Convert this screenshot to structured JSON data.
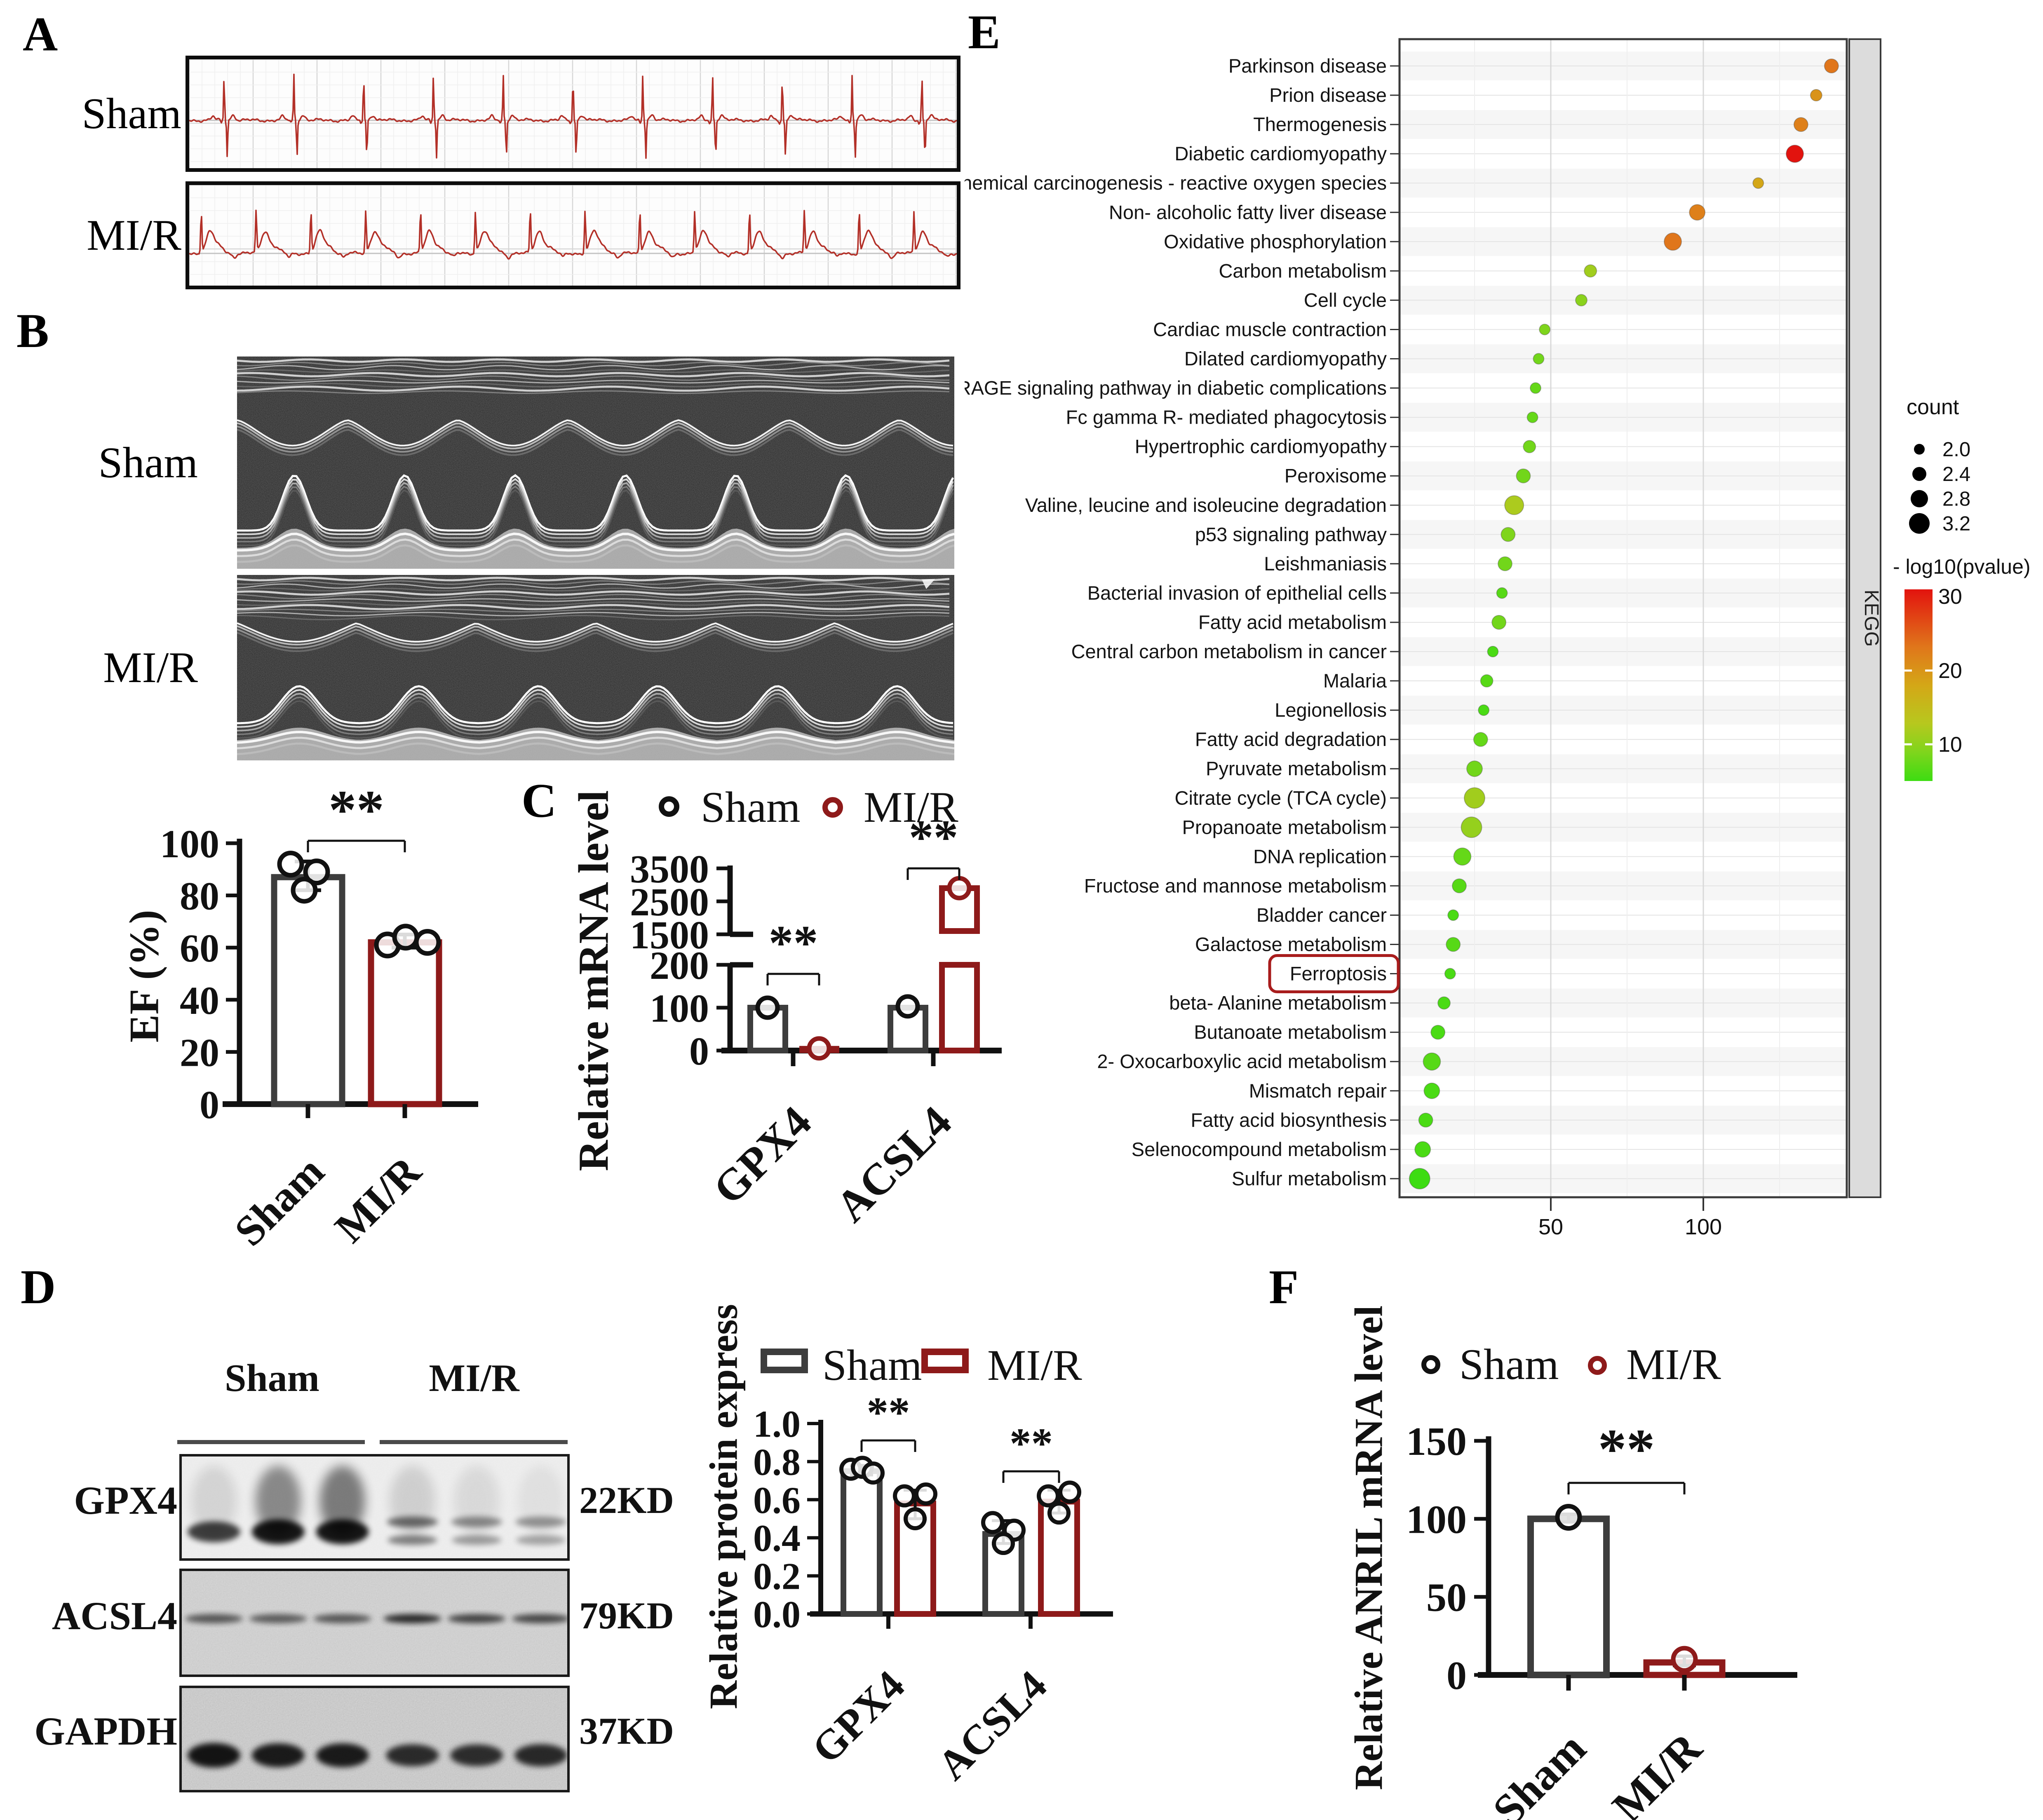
{
  "colors": {
    "mir_red": "#8e1a1a",
    "sham_dark": "#3d3d3d",
    "ecg_red": "#b33028",
    "point_black": "#111111",
    "ferroptosis_box": "#a81c1c",
    "kegg_strip": "#dcdcdc"
  },
  "panels": {
    "a": {
      "letter": "A",
      "rows": [
        {
          "label": "Sham",
          "beats": 11,
          "kind": "normal"
        },
        {
          "label": "MI/R",
          "beats": 14,
          "kind": "st_elevation"
        }
      ]
    },
    "b": {
      "letter": "B",
      "rows": [
        {
          "label": "Sham",
          "kind": "sham"
        },
        {
          "label": "MI/R",
          "kind": "mir"
        }
      ]
    },
    "c": {
      "letter": "C"
    },
    "d": {
      "letter": "D",
      "col_headers": [
        "Sham",
        "MI/R"
      ],
      "blots": [
        {
          "protein": "GPX4",
          "kd": "22KD",
          "band_y": 0.74,
          "bg": "#f0f0f0",
          "lanes": [
            0.7,
            1.0,
            1.0,
            0.75,
            0.5,
            0.42
          ],
          "double": [
            false,
            false,
            false,
            true,
            true,
            true
          ],
          "smear": [
            0.1,
            0.42,
            0.48,
            0.12,
            0.08,
            0.05
          ]
        },
        {
          "protein": "ACSL4",
          "kd": "79KD",
          "band_y": 0.46,
          "bg": "#c6c6c6",
          "lanes": [
            0.45,
            0.4,
            0.44,
            0.85,
            0.62,
            0.58
          ],
          "double": [
            false,
            false,
            false,
            false,
            false,
            false
          ],
          "smear": [
            0,
            0,
            0,
            0,
            0,
            0
          ]
        },
        {
          "protein": "GAPDH",
          "kd": "37KD",
          "band_y": 0.66,
          "bg": "#bdbdbd",
          "lanes": [
            1.0,
            0.95,
            0.95,
            0.8,
            0.78,
            0.82
          ],
          "double": [
            false,
            false,
            false,
            false,
            false,
            false
          ],
          "smear": [
            0,
            0,
            0,
            0,
            0,
            0
          ]
        }
      ]
    },
    "e": {
      "letter": "E"
    },
    "f": {
      "letter": "F"
    }
  },
  "chart_data": [
    {
      "id": "ef",
      "type": "bar",
      "ylabel": "EF  (%)",
      "ylim": [
        0,
        100
      ],
      "yticks": [
        0,
        20,
        40,
        60,
        80,
        100
      ],
      "categories": [
        "Sham",
        "MI/R"
      ],
      "values": [
        87,
        62
      ],
      "points": [
        [
          92,
          89,
          82
        ],
        [
          61,
          64,
          62
        ]
      ],
      "errors": [
        [
          82,
          93
        ],
        [
          60,
          65
        ]
      ],
      "sig": {
        "label": "**"
      },
      "bar_colors": [
        "#3d3d3d",
        "#8e1a1a"
      ]
    },
    {
      "id": "mrna",
      "type": "grouped-bar-broken-axis",
      "ylabel": "Relative mRNA level",
      "legend": [
        "Sham",
        "MI/R"
      ],
      "categories": [
        "GPX4",
        "ACSL4"
      ],
      "series": [
        {
          "name": "Sham",
          "values": [
            100,
            100
          ],
          "color": "#3d3d3d"
        },
        {
          "name": "MI/R",
          "values": [
            5,
            2900
          ],
          "color": "#8e1a1a"
        }
      ],
      "points": {
        "sham": [
          100,
          103
        ],
        "mir": [
          5,
          2900
        ]
      },
      "axis_break": {
        "lower": [
          0,
          200
        ],
        "lower_ticks": [
          0,
          100,
          200
        ],
        "upper": [
          1500,
          3500
        ],
        "upper_ticks": [
          1500,
          2500,
          3500
        ]
      },
      "sig": [
        {
          "label": "**"
        },
        {
          "label": "**"
        }
      ]
    },
    {
      "id": "protein",
      "type": "grouped-bar",
      "ylabel": "Relative protein express",
      "ylim": [
        0,
        1.0
      ],
      "yticks": [
        "0.0",
        "0.2",
        "0.4",
        "0.6",
        "0.8",
        "1.0"
      ],
      "legend": [
        "Sham",
        "MI/R"
      ],
      "categories": [
        "GPX4",
        "ACSL4"
      ],
      "series": [
        {
          "name": "Sham",
          "values": [
            0.75,
            0.42
          ],
          "color": "#3d3d3d"
        },
        {
          "name": "MI/R",
          "values": [
            0.58,
            0.59
          ],
          "color": "#8e1a1a"
        }
      ],
      "points": {
        "sham": [
          [
            0.76,
            0.77,
            0.74
          ],
          [
            0.48,
            0.44,
            0.37
          ]
        ],
        "mir": [
          [
            0.62,
            0.63,
            0.5
          ],
          [
            0.62,
            0.64,
            0.53
          ]
        ]
      },
      "errors": {
        "sham": [
          [
            0.73,
            0.78
          ],
          [
            0.37,
            0.49
          ]
        ],
        "mir": [
          [
            0.5,
            0.65
          ],
          [
            0.53,
            0.65
          ]
        ]
      },
      "sig": [
        {
          "label": "**"
        },
        {
          "label": "**"
        }
      ]
    },
    {
      "id": "anril",
      "type": "bar",
      "ylabel": "Relative ANRIL mRNA level",
      "ylim": [
        0,
        150
      ],
      "yticks": [
        0,
        50,
        100,
        150
      ],
      "legend": [
        "Sham",
        "MI/R"
      ],
      "categories": [
        "Sham",
        "MI/R"
      ],
      "values": [
        100,
        8
      ],
      "points": [
        [
          101
        ],
        [
          10
        ]
      ],
      "errors": [
        [
          98,
          103
        ],
        [
          6,
          12
        ]
      ],
      "sig": {
        "label": "**"
      },
      "bar_colors": [
        "#3d3d3d",
        "#8e1a1a"
      ]
    },
    {
      "id": "kegg",
      "type": "scatter",
      "strip_label": "KEGG",
      "xticks": [
        50,
        100
      ],
      "xlim": [
        0,
        148
      ],
      "size_legend": {
        "title": "count",
        "values": [
          "2.0",
          "2.4",
          "2.8",
          "3.2"
        ]
      },
      "color_legend": {
        "title": "- log10(pvalue)",
        "ticks": [
          30,
          20,
          10
        ],
        "min": 5,
        "max": 31
      },
      "highlight": "Ferroptosis",
      "pathways": [
        {
          "name": "Parkinson disease",
          "x": 142,
          "count": 2.4,
          "log10p": 25
        },
        {
          "name": "Prion disease",
          "x": 137,
          "count": 2.1,
          "log10p": 22
        },
        {
          "name": "Thermogenesis",
          "x": 132,
          "count": 2.4,
          "log10p": 24
        },
        {
          "name": "Diabetic cardiomyopathy",
          "x": 130,
          "count": 2.8,
          "log10p": 30
        },
        {
          "name": "Chemical carcinogenesis - reactive oxygen species",
          "x": 118,
          "count": 2.0,
          "log10p": 20
        },
        {
          "name": "Non- alcoholic fatty liver disease",
          "x": 98,
          "count": 2.6,
          "log10p": 24
        },
        {
          "name": "Oxidative phosphorylation",
          "x": 90,
          "count": 2.8,
          "log10p": 25
        },
        {
          "name": "Carbon metabolism",
          "x": 63,
          "count": 2.2,
          "log10p": 13
        },
        {
          "name": "Cell cycle",
          "x": 60,
          "count": 2.1,
          "log10p": 11
        },
        {
          "name": "Cardiac muscle contraction",
          "x": 48,
          "count": 2.0,
          "log10p": 10
        },
        {
          "name": "Dilated cardiomyopathy",
          "x": 46,
          "count": 2.0,
          "log10p": 9
        },
        {
          "name": "AGE- RAGE signaling pathway in diabetic complications",
          "x": 45,
          "count": 2.0,
          "log10p": 8
        },
        {
          "name": "Fc gamma R- mediated phagocytosis",
          "x": 44,
          "count": 2.0,
          "log10p": 8
        },
        {
          "name": "Hypertrophic cardiomyopathy",
          "x": 43,
          "count": 2.2,
          "log10p": 9
        },
        {
          "name": "Peroxisome",
          "x": 41,
          "count": 2.4,
          "log10p": 9
        },
        {
          "name": "Valine, leucine and isoleucine degradation",
          "x": 38,
          "count": 3.0,
          "log10p": 14
        },
        {
          "name": "p53 signaling pathway",
          "x": 36,
          "count": 2.4,
          "log10p": 10
        },
        {
          "name": "Leishmaniasis",
          "x": 35,
          "count": 2.4,
          "log10p": 9
        },
        {
          "name": "Bacterial invasion of epithelial cells",
          "x": 34,
          "count": 2.0,
          "log10p": 7
        },
        {
          "name": "Fatty acid metabolism",
          "x": 33,
          "count": 2.4,
          "log10p": 9
        },
        {
          "name": "Central carbon metabolism in cancer",
          "x": 31,
          "count": 2.0,
          "log10p": 6
        },
        {
          "name": "Malaria",
          "x": 29,
          "count": 2.2,
          "log10p": 7
        },
        {
          "name": "Legionellosis",
          "x": 28,
          "count": 2.0,
          "log10p": 6
        },
        {
          "name": "Fatty acid degradation",
          "x": 27,
          "count": 2.4,
          "log10p": 8
        },
        {
          "name": "Pyruvate metabolism",
          "x": 25,
          "count": 2.6,
          "log10p": 9
        },
        {
          "name": "Citrate cycle (TCA cycle)",
          "x": 25,
          "count": 3.2,
          "log10p": 13
        },
        {
          "name": "Propanoate metabolism",
          "x": 24,
          "count": 3.2,
          "log10p": 12
        },
        {
          "name": "DNA replication",
          "x": 21,
          "count": 2.8,
          "log10p": 8
        },
        {
          "name": "Fructose and mannose metabolism",
          "x": 20,
          "count": 2.4,
          "log10p": 7
        },
        {
          "name": "Bladder cancer",
          "x": 18,
          "count": 2.0,
          "log10p": 6
        },
        {
          "name": "Galactose metabolism",
          "x": 18,
          "count": 2.4,
          "log10p": 7
        },
        {
          "name": "Ferroptosis",
          "x": 17,
          "count": 2.0,
          "log10p": 6
        },
        {
          "name": "beta- Alanine metabolism",
          "x": 15,
          "count": 2.2,
          "log10p": 6
        },
        {
          "name": "Butanoate metabolism",
          "x": 13,
          "count": 2.4,
          "log10p": 6
        },
        {
          "name": "2- Oxocarboxylic acid metabolism",
          "x": 11,
          "count": 2.8,
          "log10p": 7
        },
        {
          "name": "Mismatch repair",
          "x": 11,
          "count": 2.6,
          "log10p": 6
        },
        {
          "name": "Fatty acid biosynthesis",
          "x": 9,
          "count": 2.4,
          "log10p": 6
        },
        {
          "name": "Selenocompound metabolism",
          "x": 8,
          "count": 2.6,
          "log10p": 6
        },
        {
          "name": "Sulfur metabolism",
          "x": 7,
          "count": 3.2,
          "log10p": 5
        }
      ]
    }
  ]
}
